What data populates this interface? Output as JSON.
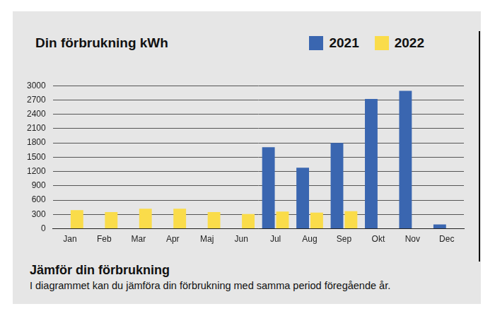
{
  "chart_data": {
    "type": "bar",
    "title": "Din förbrukning kWh",
    "categories": [
      "Jan",
      "Feb",
      "Mar",
      "Apr",
      "Maj",
      "Jun",
      "Jul",
      "Aug",
      "Sep",
      "Okt",
      "Nov",
      "Dec"
    ],
    "series": [
      {
        "name": "2021",
        "color": "#3a66b0",
        "values": [
          null,
          null,
          null,
          null,
          null,
          null,
          1710,
          1280,
          1800,
          2720,
          2890,
          90
        ]
      },
      {
        "name": "2022",
        "color": "#fadc4a",
        "values": [
          390,
          350,
          420,
          420,
          350,
          310,
          360,
          340,
          370,
          null,
          null,
          null
        ]
      }
    ],
    "ylim": [
      0,
      3000
    ],
    "yticks": [
      0,
      300,
      600,
      900,
      1200,
      1500,
      1800,
      2100,
      2400,
      2700,
      3000
    ],
    "grid": true,
    "legend": "top-right",
    "annotations": [
      "Jämför din förbrukning",
      "I diagrammet kan du jämföra din förbrukning med samma period föregående år."
    ]
  }
}
